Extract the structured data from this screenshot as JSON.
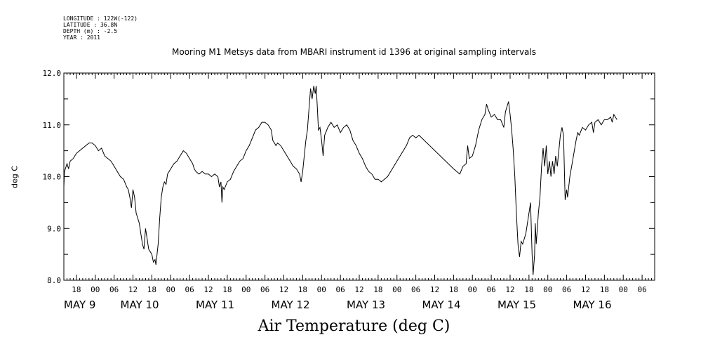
{
  "metadata_lines": [
    "LONGITUDE : 122W(-122)",
    "LATITUDE : 36.8N",
    "DEPTH (m) : -2.5",
    "YEAR : 2011"
  ],
  "chart_data": {
    "type": "line",
    "title": "Mooring M1 Metsys data from MBARI instrument id 1396 at original sampling intervals",
    "xlabel": "Air Temperature (deg C)",
    "ylabel": "deg C",
    "ylim": [
      8.0,
      12.0
    ],
    "yticks": [
      "8.0",
      "9.0",
      "10.0",
      "11.0",
      "12.0"
    ],
    "x_units": "hours since 2011-05-08 18:00",
    "xlim": [
      -4,
      184
    ],
    "hour_ticks": [
      {
        "x": 0,
        "label": "18"
      },
      {
        "x": 6,
        "label": "00"
      },
      {
        "x": 12,
        "label": "06"
      },
      {
        "x": 18,
        "label": "12"
      },
      {
        "x": 24,
        "label": "18"
      },
      {
        "x": 30,
        "label": "00"
      },
      {
        "x": 36,
        "label": "06"
      },
      {
        "x": 42,
        "label": "12"
      },
      {
        "x": 48,
        "label": "18"
      },
      {
        "x": 54,
        "label": "00"
      },
      {
        "x": 60,
        "label": "06"
      },
      {
        "x": 66,
        "label": "12"
      },
      {
        "x": 72,
        "label": "18"
      },
      {
        "x": 78,
        "label": "00"
      },
      {
        "x": 84,
        "label": "06"
      },
      {
        "x": 90,
        "label": "12"
      },
      {
        "x": 96,
        "label": "18"
      },
      {
        "x": 102,
        "label": "00"
      },
      {
        "x": 108,
        "label": "06"
      },
      {
        "x": 114,
        "label": "12"
      },
      {
        "x": 120,
        "label": "18"
      },
      {
        "x": 126,
        "label": "00"
      },
      {
        "x": 132,
        "label": "06"
      },
      {
        "x": 138,
        "label": "12"
      },
      {
        "x": 144,
        "label": "18"
      },
      {
        "x": 150,
        "label": "00"
      },
      {
        "x": 156,
        "label": "06"
      },
      {
        "x": 162,
        "label": "12"
      },
      {
        "x": 168,
        "label": "18"
      },
      {
        "x": 174,
        "label": "00"
      },
      {
        "x": 180,
        "label": "06"
      }
    ],
    "day_labels": [
      {
        "x": 0,
        "label": "MAY  9"
      },
      {
        "x": 18,
        "label": "MAY 10"
      },
      {
        "x": 42,
        "label": "MAY 11"
      },
      {
        "x": 66,
        "label": "MAY 12"
      },
      {
        "x": 90,
        "label": "MAY 13"
      },
      {
        "x": 114,
        "label": "MAY 14"
      },
      {
        "x": 138,
        "label": "MAY 15"
      },
      {
        "x": 162,
        "label": "MAY 16"
      }
    ],
    "series": [
      {
        "color": "#000000",
        "points": [
          [
            -4,
            9.8
          ],
          [
            -3.8,
            10.1
          ],
          [
            -3,
            10.25
          ],
          [
            -2.5,
            10.15
          ],
          [
            -2,
            10.3
          ],
          [
            -1,
            10.35
          ],
          [
            0,
            10.45
          ],
          [
            1,
            10.5
          ],
          [
            2,
            10.55
          ],
          [
            3,
            10.6
          ],
          [
            4,
            10.65
          ],
          [
            5,
            10.65
          ],
          [
            6,
            10.6
          ],
          [
            7,
            10.5
          ],
          [
            8,
            10.55
          ],
          [
            9,
            10.4
          ],
          [
            10,
            10.35
          ],
          [
            11,
            10.3
          ],
          [
            12,
            10.2
          ],
          [
            13,
            10.1
          ],
          [
            14,
            10.0
          ],
          [
            15,
            9.95
          ],
          [
            16,
            9.8
          ],
          [
            16.5,
            9.75
          ],
          [
            17,
            9.6
          ],
          [
            17.5,
            9.4
          ],
          [
            18,
            9.75
          ],
          [
            18.5,
            9.6
          ],
          [
            19,
            9.3
          ],
          [
            20,
            9.1
          ],
          [
            20.5,
            8.9
          ],
          [
            21,
            8.7
          ],
          [
            21.5,
            8.6
          ],
          [
            22,
            9.0
          ],
          [
            22.5,
            8.8
          ],
          [
            23,
            8.6
          ],
          [
            24,
            8.5
          ],
          [
            24.5,
            8.35
          ],
          [
            25,
            8.4
          ],
          [
            25.3,
            8.3
          ],
          [
            26,
            8.7
          ],
          [
            26.5,
            9.2
          ],
          [
            27,
            9.6
          ],
          [
            27.5,
            9.8
          ],
          [
            28,
            9.9
          ],
          [
            28.5,
            9.85
          ],
          [
            29,
            10.05
          ],
          [
            30,
            10.15
          ],
          [
            31,
            10.25
          ],
          [
            32,
            10.3
          ],
          [
            33,
            10.4
          ],
          [
            34,
            10.5
          ],
          [
            35,
            10.45
          ],
          [
            36,
            10.35
          ],
          [
            37,
            10.25
          ],
          [
            37.5,
            10.15
          ],
          [
            38,
            10.1
          ],
          [
            39,
            10.05
          ],
          [
            40,
            10.1
          ],
          [
            41,
            10.05
          ],
          [
            42,
            10.05
          ],
          [
            43,
            10.0
          ],
          [
            44,
            10.05
          ],
          [
            45,
            10.0
          ],
          [
            45.5,
            9.8
          ],
          [
            46,
            9.9
          ],
          [
            46.3,
            9.5
          ],
          [
            46.6,
            9.8
          ],
          [
            47,
            9.75
          ],
          [
            48,
            9.9
          ],
          [
            49,
            9.95
          ],
          [
            50,
            10.1
          ],
          [
            51,
            10.2
          ],
          [
            52,
            10.3
          ],
          [
            53,
            10.35
          ],
          [
            54,
            10.5
          ],
          [
            55,
            10.6
          ],
          [
            56,
            10.75
          ],
          [
            57,
            10.9
          ],
          [
            58,
            10.95
          ],
          [
            59,
            11.05
          ],
          [
            60,
            11.05
          ],
          [
            61,
            11.0
          ],
          [
            62,
            10.9
          ],
          [
            62.5,
            10.7
          ],
          [
            63,
            10.65
          ],
          [
            63.5,
            10.6
          ],
          [
            64,
            10.65
          ],
          [
            65,
            10.6
          ],
          [
            66,
            10.5
          ],
          [
            67,
            10.4
          ],
          [
            68,
            10.3
          ],
          [
            69,
            10.2
          ],
          [
            70,
            10.15
          ],
          [
            71,
            10.05
          ],
          [
            71.5,
            9.9
          ],
          [
            72,
            10.1
          ],
          [
            72.5,
            10.4
          ],
          [
            73,
            10.7
          ],
          [
            73.5,
            10.9
          ],
          [
            74,
            11.3
          ],
          [
            74.5,
            11.7
          ],
          [
            75,
            11.5
          ],
          [
            75.5,
            11.75
          ],
          [
            76,
            11.6
          ],
          [
            76.3,
            11.75
          ],
          [
            76.7,
            11.3
          ],
          [
            77,
            10.9
          ],
          [
            77.5,
            10.95
          ],
          [
            78,
            10.7
          ],
          [
            78.5,
            10.4
          ],
          [
            79,
            10.8
          ],
          [
            80,
            10.95
          ],
          [
            81,
            11.05
          ],
          [
            82,
            10.95
          ],
          [
            83,
            11.0
          ],
          [
            84,
            10.85
          ],
          [
            85,
            10.95
          ],
          [
            86,
            11.0
          ],
          [
            87,
            10.9
          ],
          [
            88,
            10.7
          ],
          [
            89,
            10.6
          ],
          [
            90,
            10.45
          ],
          [
            91,
            10.35
          ],
          [
            92,
            10.2
          ],
          [
            93,
            10.1
          ],
          [
            94,
            10.05
          ],
          [
            95,
            9.95
          ],
          [
            96,
            9.95
          ],
          [
            97,
            9.9
          ],
          [
            98,
            9.95
          ],
          [
            99,
            10.0
          ],
          [
            100,
            10.1
          ],
          [
            101,
            10.2
          ],
          [
            102,
            10.3
          ],
          [
            103,
            10.4
          ],
          [
            104,
            10.5
          ],
          [
            105,
            10.6
          ],
          [
            106,
            10.75
          ],
          [
            107,
            10.8
          ],
          [
            108,
            10.75
          ],
          [
            109,
            10.8
          ],
          [
            120,
            10.15
          ],
          [
            121,
            10.1
          ],
          [
            122,
            10.05
          ],
          [
            123,
            10.2
          ],
          [
            124,
            10.25
          ],
          [
            124.5,
            10.6
          ],
          [
            125,
            10.35
          ],
          [
            126,
            10.4
          ],
          [
            127,
            10.6
          ],
          [
            128,
            10.9
          ],
          [
            129,
            11.1
          ],
          [
            130,
            11.2
          ],
          [
            130.5,
            11.4
          ],
          [
            131,
            11.3
          ],
          [
            132,
            11.15
          ],
          [
            133,
            11.2
          ],
          [
            134,
            11.1
          ],
          [
            135,
            11.1
          ],
          [
            136,
            10.95
          ],
          [
            136.5,
            11.25
          ],
          [
            137,
            11.35
          ],
          [
            137.5,
            11.45
          ],
          [
            138,
            11.2
          ],
          [
            138.5,
            10.9
          ],
          [
            139,
            10.5
          ],
          [
            139.5,
            10.0
          ],
          [
            140,
            9.3
          ],
          [
            140.5,
            8.7
          ],
          [
            141,
            8.45
          ],
          [
            141.5,
            8.75
          ],
          [
            142,
            8.7
          ],
          [
            143,
            8.9
          ],
          [
            144,
            9.3
          ],
          [
            144.5,
            9.5
          ],
          [
            145,
            8.5
          ],
          [
            145.3,
            8.1
          ],
          [
            145.8,
            8.5
          ],
          [
            146,
            9.1
          ],
          [
            146.3,
            8.7
          ],
          [
            147,
            9.3
          ],
          [
            147.5,
            9.6
          ],
          [
            148,
            10.2
          ],
          [
            148.5,
            10.55
          ],
          [
            149,
            10.2
          ],
          [
            149.5,
            10.6
          ],
          [
            150,
            10.05
          ],
          [
            150.5,
            10.3
          ],
          [
            151,
            10.0
          ],
          [
            151.5,
            10.3
          ],
          [
            152,
            10.05
          ],
          [
            152.5,
            10.4
          ],
          [
            153,
            10.2
          ],
          [
            154,
            10.8
          ],
          [
            154.5,
            10.95
          ],
          [
            155,
            10.8
          ],
          [
            155.5,
            9.55
          ],
          [
            156,
            9.75
          ],
          [
            156.3,
            9.6
          ],
          [
            157,
            10.0
          ],
          [
            158,
            10.35
          ],
          [
            159,
            10.7
          ],
          [
            159.5,
            10.85
          ],
          [
            160,
            10.8
          ],
          [
            161,
            10.95
          ],
          [
            162,
            10.9
          ],
          [
            163,
            11.0
          ],
          [
            164,
            11.05
          ],
          [
            164.5,
            10.85
          ],
          [
            165,
            11.05
          ],
          [
            166,
            11.1
          ],
          [
            167,
            11.0
          ],
          [
            168,
            11.1
          ],
          [
            169,
            11.1
          ],
          [
            170,
            11.15
          ],
          [
            170.5,
            11.05
          ],
          [
            171,
            11.2
          ],
          [
            172,
            11.1
          ]
        ]
      }
    ]
  }
}
